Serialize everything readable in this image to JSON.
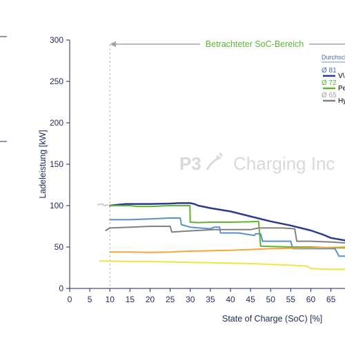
{
  "chart_data": {
    "type": "line",
    "xlabel": "State of Charge (SoC) [%]",
    "ylabel": "Ladeleistung [kW]",
    "xlim": [
      0,
      68.5
    ],
    "ylim": [
      0,
      300
    ],
    "x_ticks": [
      "0",
      "5",
      "10",
      "15",
      "20",
      "25",
      "30",
      "35",
      "40",
      "45",
      "50",
      "55",
      "60",
      "65"
    ],
    "y_ticks": [
      "0",
      "50",
      "100",
      "150",
      "200",
      "250",
      "300"
    ],
    "grid": false,
    "legend_position": "top-right",
    "annotation": {
      "text": "Betrachteter SoC-Bereich",
      "arrow_from_x": 68.5,
      "arrow_to_x": 10,
      "y": 295,
      "color": "#5cb531"
    },
    "reference_line": {
      "x": 10,
      "style": "dashed"
    },
    "watermark": {
      "logo": "P3",
      "text": "Charging Inc"
    },
    "legend": {
      "title": "Durchsch",
      "entries": [
        {
          "avg": "Ø 81",
          "label": "V\\",
          "color": "#2b3990"
        },
        {
          "avg": "Ø 72",
          "label": "Pe",
          "color": "#5cb531"
        },
        {
          "avg": "Ø 65",
          "label": "Hy",
          "color": "#808080"
        }
      ]
    },
    "series": [
      {
        "color": "#2b3990",
        "width": 2.5,
        "x": [
          10,
          12,
          14,
          20,
          25,
          27,
          30,
          31,
          32,
          35,
          40,
          45,
          50,
          55,
          60,
          63,
          65,
          68.5
        ],
        "y": [
          100,
          101,
          102,
          102,
          102.5,
          103,
          103,
          102,
          100,
          97,
          93,
          87,
          81,
          76,
          70,
          65,
          61,
          58
        ]
      },
      {
        "color": "#5cb531",
        "width": 2,
        "x": [
          10,
          10,
          15,
          17,
          20,
          25,
          29.9,
          30,
          32,
          35,
          40,
          45,
          47,
          47.5,
          55,
          60,
          65,
          68.5
        ],
        "y": [
          99,
          100,
          100,
          99,
          99,
          100,
          100,
          80,
          79.5,
          80,
          80,
          80.5,
          81,
          51,
          50,
          50,
          49,
          49
        ]
      },
      {
        "color": "#5b8fc7",
        "width": 2,
        "x": [
          10,
          15,
          20,
          25,
          27.5,
          27.8,
          30,
          35,
          36,
          37.3,
          37.5,
          42,
          46,
          46.3,
          47.5,
          48,
          52,
          55,
          55.5,
          60,
          63,
          66,
          67,
          68.5
        ],
        "y": [
          83,
          83,
          84,
          85,
          85,
          77,
          74,
          72,
          74,
          74,
          67,
          67,
          64,
          66,
          66,
          57,
          57,
          57,
          48,
          48,
          48,
          48,
          39,
          39
        ]
      },
      {
        "color": "#808080",
        "width": 2,
        "x": [
          9,
          10,
          15,
          20,
          25,
          25.4,
          28,
          32,
          36,
          45,
          47,
          53,
          56,
          56.5,
          60,
          65,
          68.5
        ],
        "y": [
          70,
          73,
          74,
          75,
          75,
          68,
          69,
          70,
          71,
          71,
          73,
          73,
          72,
          57,
          57,
          56,
          55
        ]
      },
      {
        "color": "#f7a33c",
        "width": 2,
        "x": [
          10,
          15,
          20,
          25,
          30,
          35,
          40,
          45,
          50,
          55,
          60,
          65,
          68.5
        ],
        "y": [
          44,
          44,
          43.5,
          44,
          45,
          45.5,
          46,
          47,
          48,
          48.5,
          49,
          49.5,
          50
        ]
      },
      {
        "color": "#f0e446",
        "width": 2,
        "x": [
          7.5,
          10,
          15,
          20,
          25,
          30,
          35,
          40,
          45,
          50,
          55,
          59,
          60,
          65,
          68.5
        ],
        "y": [
          33,
          33,
          32.5,
          32.5,
          32,
          31.5,
          31,
          30.5,
          30,
          29,
          28,
          27,
          24,
          23,
          23
        ]
      },
      {
        "color": "#c9c8e6",
        "width": 2,
        "x": [
          7,
          8,
          8.7,
          9.5
        ],
        "y": [
          101,
          102,
          100,
          101
        ]
      }
    ]
  }
}
